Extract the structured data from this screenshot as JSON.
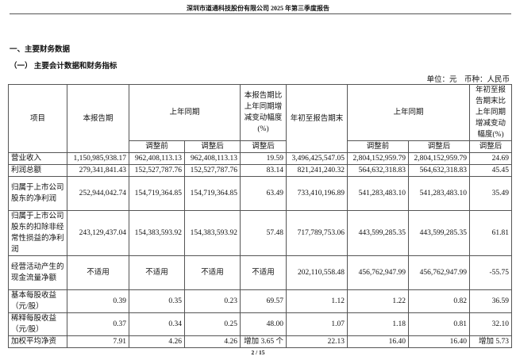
{
  "header": "深圳市道通科技股份有限公司 2025 年第三季度报告",
  "section_title": "一、主要财务数据",
  "subsection_title": "（一） 主要会计数据和财务指标",
  "unit_note": "单位：元　币种：人民币",
  "table": {
    "headers": {
      "item": "项目",
      "current_period": "本报告期",
      "prior_period": "上年同期",
      "current_change": "本报告期比上年同期增减变动幅度(%)",
      "ytd": "年初至报告期末",
      "prior_ytd": "上年同期",
      "ytd_change": "年初至报告期末比上年同期增减变动幅度(%)",
      "before": "调整前",
      "after": "调整后",
      "after2": "调整后",
      "before2": "调整前",
      "after3": "调整后",
      "after4": "调整后"
    },
    "rows": [
      [
        "营业收入",
        "1,150,985,938.17",
        "962,408,113.13",
        "962,408,113.13",
        "19.59",
        "3,496,425,547.05",
        "2,804,152,959.79",
        "2,804,152,959.79",
        "24.69"
      ],
      [
        "利润总额",
        "279,341,841.43",
        "152,527,787.76",
        "152,527,787.76",
        "83.14",
        "821,241,240.32",
        "564,632,318.83",
        "564,632,318.83",
        "45.45"
      ],
      [
        "归属于上市公司股东的净利润",
        "252,944,042.74",
        "154,719,364.85",
        "154,719,364.85",
        "63.49",
        "733,410,196.89",
        "541,283,483.10",
        "541,283,483.10",
        "35.49"
      ],
      [
        "归属于上市公司股东的扣除非经常性损益的净利润",
        "243,129,437.04",
        "154,383,593.92",
        "154,383,593.92",
        "57.48",
        "717,789,753.06",
        "443,599,285.35",
        "443,599,285.35",
        "61.81"
      ],
      [
        "经营活动产生的现金流量净额",
        "不适用",
        "不适用",
        "不适用",
        "不适用",
        "202,110,558.48",
        "456,762,947.99",
        "456,762,947.99",
        "-55.75"
      ],
      [
        "基本每股收益（元/股）",
        "0.39",
        "0.35",
        "0.23",
        "69.57",
        "1.12",
        "1.22",
        "0.82",
        "36.59"
      ],
      [
        "稀释每股收益（元/股）",
        "0.37",
        "0.34",
        "0.25",
        "48.00",
        "1.07",
        "1.18",
        "0.81",
        "32.10"
      ],
      [
        "加权平均净资",
        "7.91",
        "4.26",
        "4.26",
        "增加 3.65 个",
        "22.13",
        "16.40",
        "16.40",
        "增加 5.73"
      ]
    ]
  },
  "page_number": "2 / 15"
}
